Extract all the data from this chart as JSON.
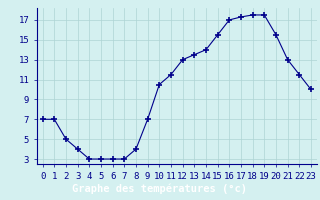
{
  "hours": [
    0,
    1,
    2,
    3,
    4,
    5,
    6,
    7,
    8,
    9,
    10,
    11,
    12,
    13,
    14,
    15,
    16,
    17,
    18,
    19,
    20,
    21,
    22,
    23
  ],
  "temps": [
    7,
    7,
    5,
    4,
    3,
    3,
    3,
    3,
    4,
    7,
    10.5,
    11.5,
    13,
    13.5,
    14,
    15.5,
    17,
    17.3,
    17.5,
    17.5,
    15.5,
    13,
    11.5,
    10
  ],
  "line_color": "#00008b",
  "marker": "+",
  "bg_color": "#d4f0f0",
  "grid_color": "#aed4d4",
  "axis_label_color": "#00008b",
  "tick_color": "#00008b",
  "bottom_bar_color": "#3a3aaa",
  "xlabel": "Graphe des températures (°c)",
  "ylabel_ticks": [
    3,
    5,
    7,
    9,
    11,
    13,
    15,
    17
  ],
  "ylim": [
    2.5,
    18.2
  ],
  "xlim": [
    -0.5,
    23.5
  ],
  "tick_fontsize": 6.5,
  "xlabel_fontsize": 7.5
}
